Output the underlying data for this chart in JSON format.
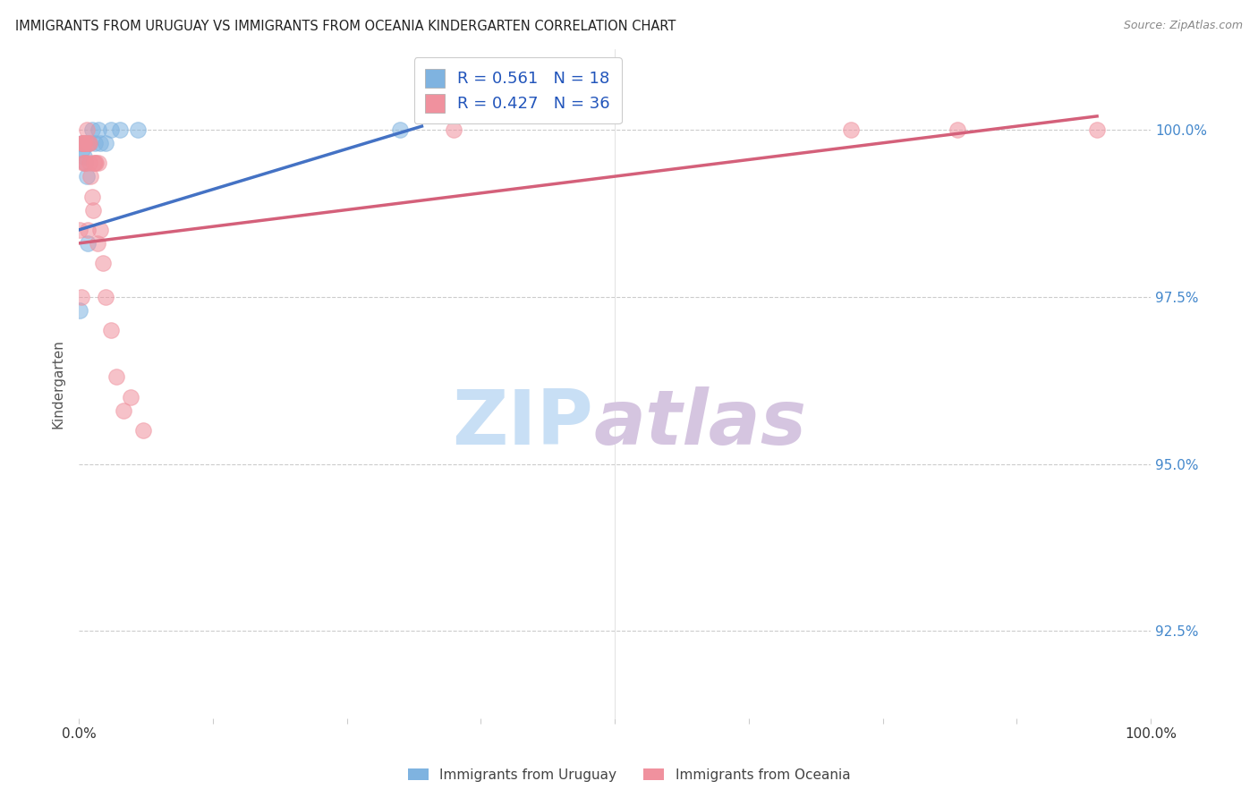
{
  "title": "IMMIGRANTS FROM URUGUAY VS IMMIGRANTS FROM OCEANIA KINDERGARTEN CORRELATION CHART",
  "source": "Source: ZipAtlas.com",
  "ylabel": "Kindergarten",
  "legend1_r": "0.561",
  "legend1_n": "18",
  "legend2_r": "0.427",
  "legend2_n": "36",
  "legend_label1": "Immigrants from Uruguay",
  "legend_label2": "Immigrants from Oceania",
  "color_uruguay": "#7fb3e0",
  "color_oceania": "#f0919e",
  "color_trendline_uruguay": "#4472c4",
  "color_trendline_oceania": "#d4607a",
  "watermark_zip": "ZIP",
  "watermark_atlas": "atlas",
  "watermark_color_zip": "#c8dff5",
  "watermark_color_atlas": "#d5c5e0",
  "xlim": [
    0.0,
    1.0
  ],
  "ylim": [
    91.2,
    101.2
  ],
  "yticks": [
    92.5,
    95.0,
    97.5,
    100.0
  ],
  "ytick_labels": [
    "92.5%",
    "95.0%",
    "97.5%",
    "100.0%"
  ],
  "uruguay_x": [
    0.001,
    0.002,
    0.003,
    0.004,
    0.005,
    0.006,
    0.007,
    0.008,
    0.01,
    0.012,
    0.015,
    0.018,
    0.02,
    0.025,
    0.03,
    0.038,
    0.055,
    0.3
  ],
  "uruguay_y": [
    97.3,
    99.8,
    99.7,
    99.8,
    99.6,
    99.5,
    99.3,
    98.3,
    99.8,
    100.0,
    99.8,
    100.0,
    99.8,
    99.8,
    100.0,
    100.0,
    100.0,
    100.0
  ],
  "oceania_x": [
    0.001,
    0.002,
    0.003,
    0.003,
    0.004,
    0.004,
    0.005,
    0.005,
    0.006,
    0.006,
    0.007,
    0.007,
    0.008,
    0.009,
    0.01,
    0.01,
    0.011,
    0.012,
    0.013,
    0.014,
    0.015,
    0.016,
    0.017,
    0.018,
    0.02,
    0.022,
    0.025,
    0.03,
    0.035,
    0.042,
    0.048,
    0.06,
    0.35,
    0.72,
    0.82,
    0.95
  ],
  "oceania_y": [
    98.5,
    97.5,
    99.8,
    99.8,
    99.5,
    99.8,
    99.8,
    99.8,
    99.5,
    99.5,
    99.8,
    100.0,
    98.5,
    99.8,
    99.8,
    99.5,
    99.3,
    99.0,
    98.8,
    99.5,
    99.5,
    99.5,
    98.3,
    99.5,
    98.5,
    98.0,
    97.5,
    97.0,
    96.3,
    95.8,
    96.0,
    95.5,
    100.0,
    100.0,
    100.0,
    100.0
  ],
  "trendline_uru_x0": 0.0,
  "trendline_uru_x1": 0.32,
  "trendline_uru_y0": 98.5,
  "trendline_uru_y1": 100.05,
  "trendline_oce_x0": 0.0,
  "trendline_oce_x1": 0.95,
  "trendline_oce_y0": 98.3,
  "trendline_oce_y1": 100.2
}
